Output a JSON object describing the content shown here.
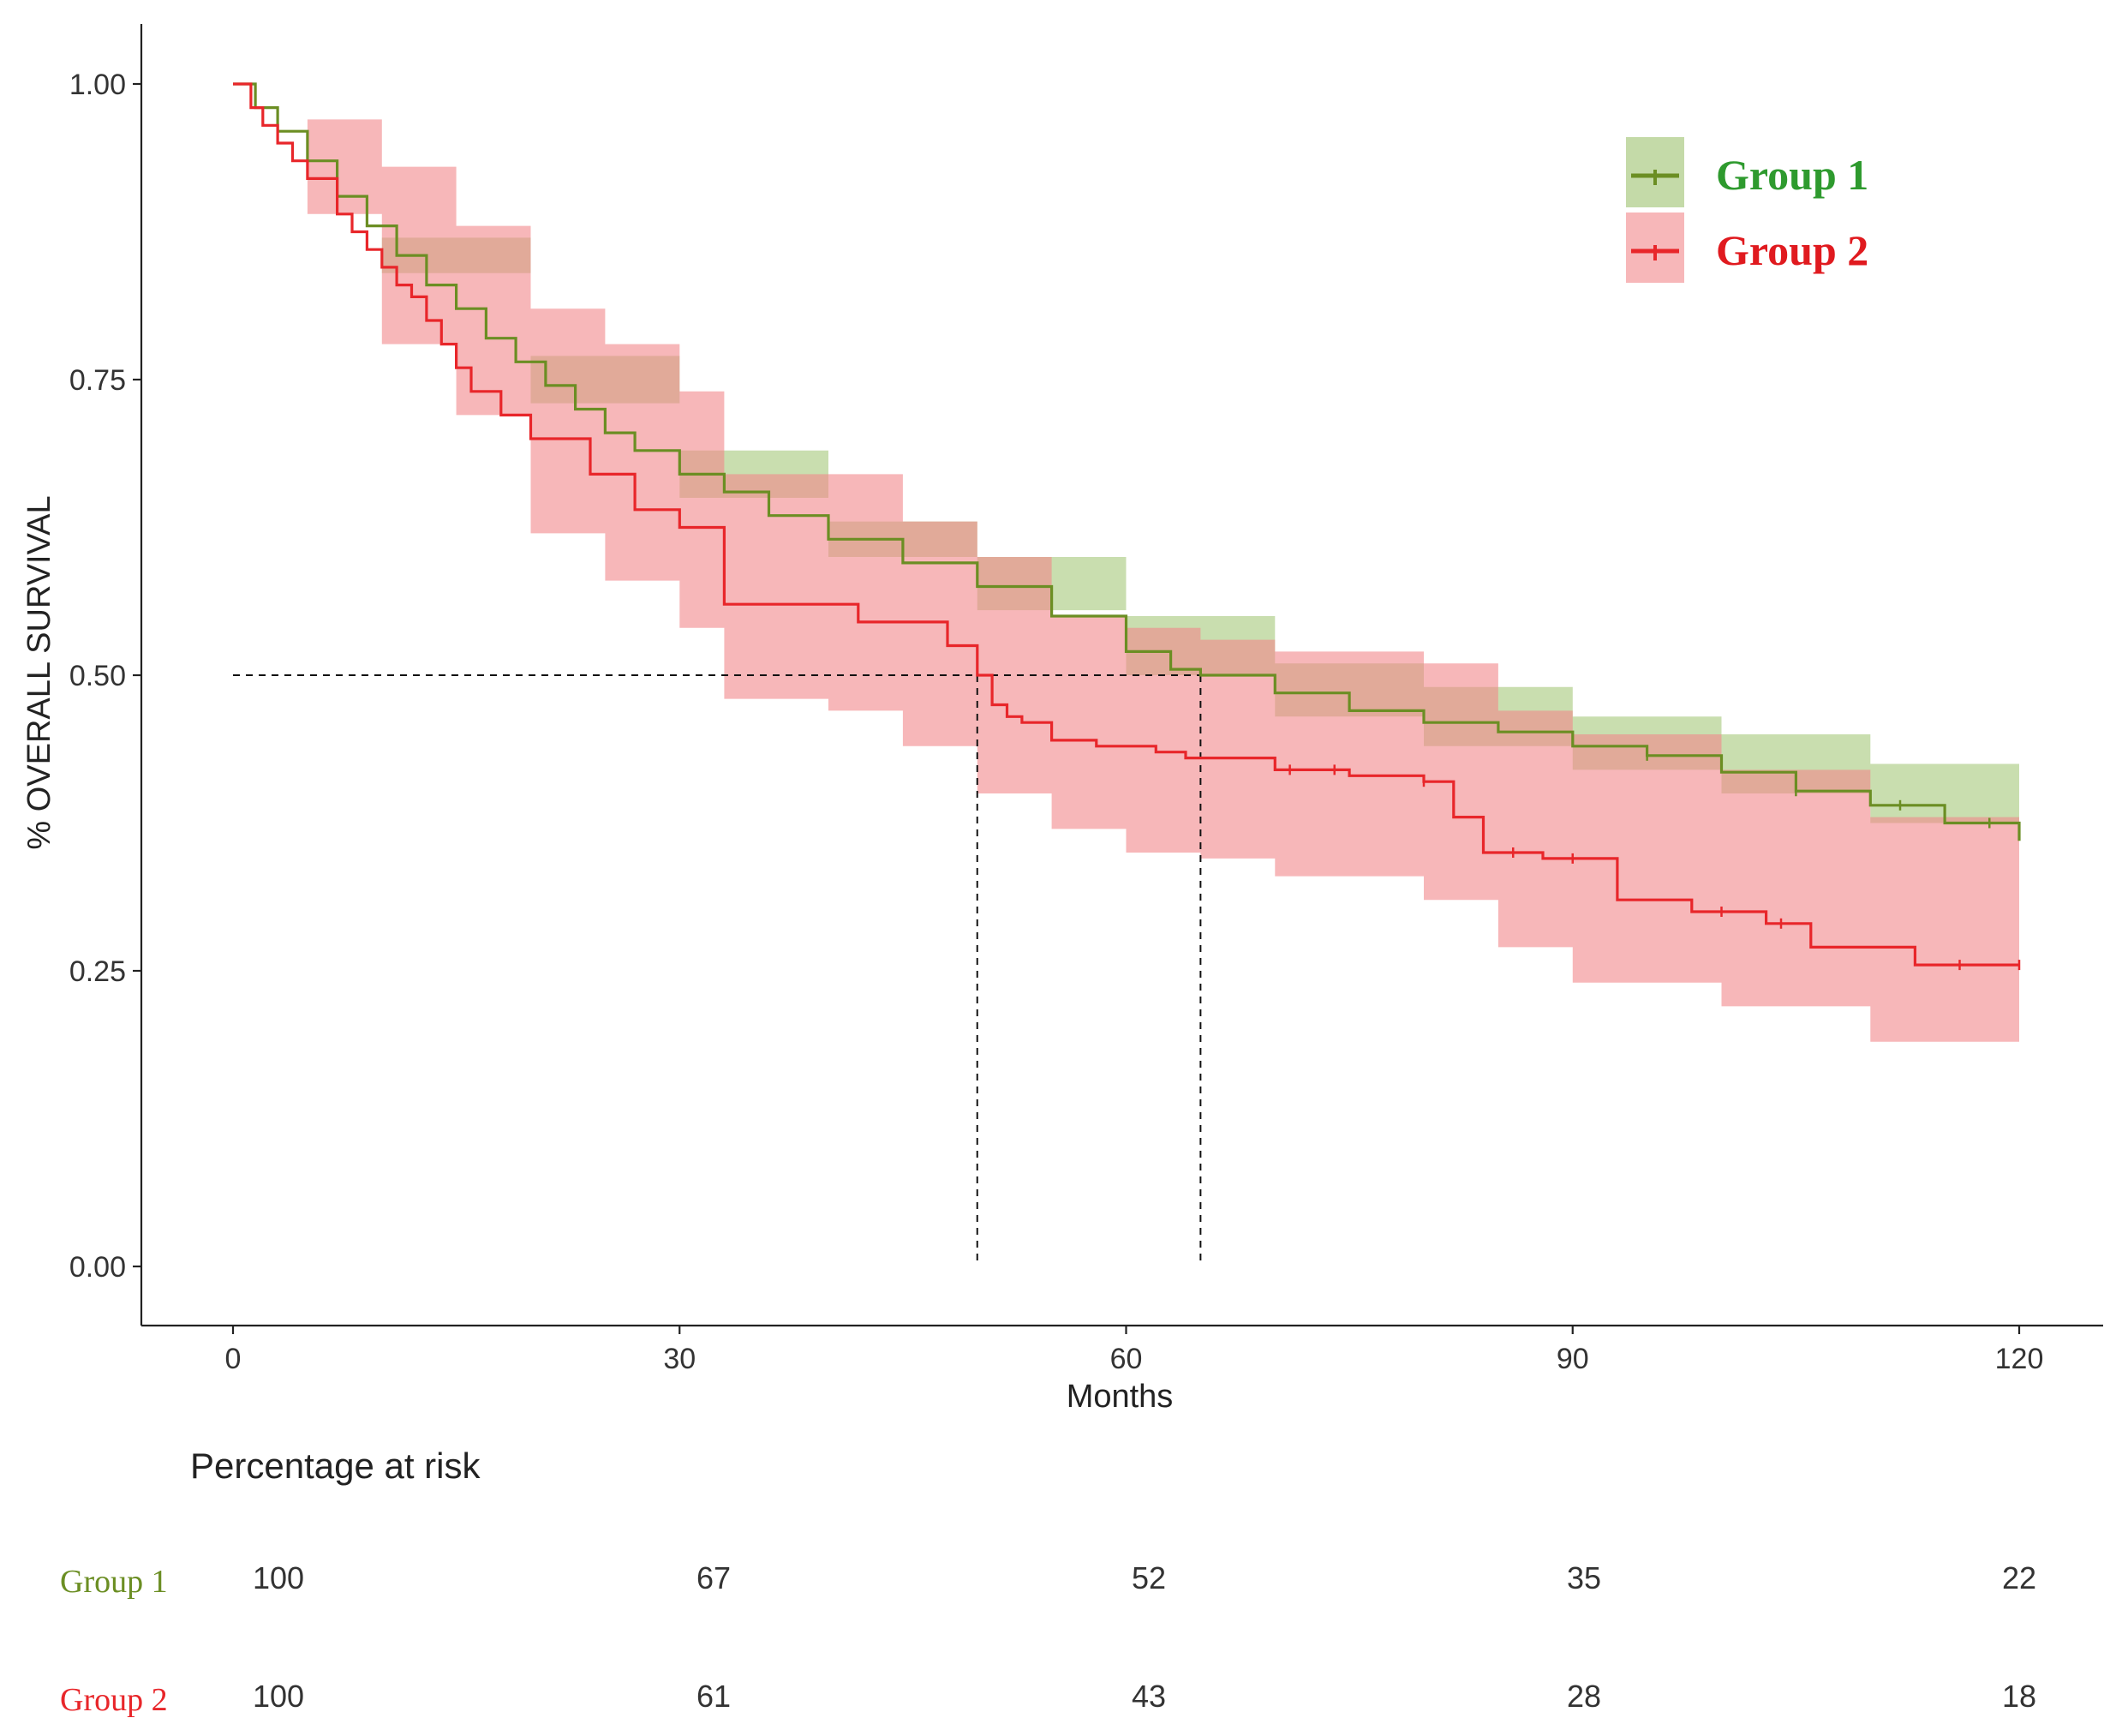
{
  "chart_data": {
    "type": "line",
    "subtype": "kaplan-meier",
    "xlabel": "Months",
    "ylabel": "% OVERALL SURVIVAL",
    "xlim": [
      0,
      120
    ],
    "ylim": [
      0,
      1
    ],
    "xticks": [
      0,
      30,
      60,
      90,
      120
    ],
    "yticks": [
      "0.00",
      "0.25",
      "0.50",
      "0.75",
      "1.00"
    ],
    "grid": false,
    "legend_position": "top-right",
    "reference_lines": {
      "horizontal_y": 0.5,
      "horizontal_from_x": 0,
      "median_survival_x": [
        50,
        65
      ]
    },
    "series": [
      {
        "name": "Group 1",
        "line_color": "#6b8e23",
        "band_color": "#9dc26e",
        "label_color": "#2e9a2e",
        "curve": [
          [
            0,
            1.0
          ],
          [
            1,
            1.0
          ],
          [
            1.5,
            0.98
          ],
          [
            3,
            0.96
          ],
          [
            5,
            0.935
          ],
          [
            7,
            0.905
          ],
          [
            9,
            0.88
          ],
          [
            11,
            0.855
          ],
          [
            13,
            0.83
          ],
          [
            15,
            0.81
          ],
          [
            17,
            0.785
          ],
          [
            19,
            0.765
          ],
          [
            21,
            0.745
          ],
          [
            23,
            0.725
          ],
          [
            25,
            0.705
          ],
          [
            27,
            0.69
          ],
          [
            30,
            0.67
          ],
          [
            33,
            0.655
          ],
          [
            36,
            0.635
          ],
          [
            40,
            0.615
          ],
          [
            45,
            0.595
          ],
          [
            50,
            0.575
          ],
          [
            55,
            0.55
          ],
          [
            60,
            0.52
          ],
          [
            63,
            0.505
          ],
          [
            65,
            0.5
          ],
          [
            70,
            0.485
          ],
          [
            75,
            0.47
          ],
          [
            80,
            0.46
          ],
          [
            85,
            0.452
          ],
          [
            90,
            0.44
          ],
          [
            95,
            0.432
          ],
          [
            100,
            0.418
          ],
          [
            105,
            0.402
          ],
          [
            110,
            0.39
          ],
          [
            115,
            0.375
          ],
          [
            120,
            0.36
          ]
        ],
        "ci_upper": [
          [
            0,
            1.0
          ],
          [
            10,
            0.87
          ],
          [
            20,
            0.77
          ],
          [
            30,
            0.69
          ],
          [
            40,
            0.63
          ],
          [
            50,
            0.6
          ],
          [
            60,
            0.55
          ],
          [
            70,
            0.51
          ],
          [
            80,
            0.49
          ],
          [
            90,
            0.465
          ],
          [
            100,
            0.45
          ],
          [
            110,
            0.425
          ],
          [
            120,
            0.39
          ]
        ],
        "ci_lower": [
          [
            0,
            1.0
          ],
          [
            10,
            0.84
          ],
          [
            20,
            0.73
          ],
          [
            30,
            0.65
          ],
          [
            40,
            0.6
          ],
          [
            50,
            0.555
          ],
          [
            60,
            0.5
          ],
          [
            70,
            0.465
          ],
          [
            80,
            0.44
          ],
          [
            90,
            0.42
          ],
          [
            100,
            0.4
          ],
          [
            110,
            0.375
          ],
          [
            120,
            0.345
          ]
        ],
        "censor_x": [
          95,
          105,
          112,
          118
        ],
        "risk_values": [
          "100",
          "67",
          "52",
          "35",
          "22"
        ]
      },
      {
        "name": "Group 2",
        "line_color": "#e8262a",
        "band_color": "#f2878b",
        "label_color": "#e01a1f",
        "curve": [
          [
            0,
            1.0
          ],
          [
            1,
            1.0
          ],
          [
            1.2,
            0.98
          ],
          [
            2,
            0.965
          ],
          [
            3,
            0.95
          ],
          [
            4,
            0.935
          ],
          [
            5,
            0.92
          ],
          [
            7,
            0.89
          ],
          [
            8,
            0.875
          ],
          [
            9,
            0.86
          ],
          [
            10,
            0.845
          ],
          [
            11,
            0.83
          ],
          [
            12,
            0.82
          ],
          [
            13,
            0.8
          ],
          [
            14,
            0.78
          ],
          [
            15,
            0.76
          ],
          [
            16,
            0.74
          ],
          [
            18,
            0.72
          ],
          [
            20,
            0.7
          ],
          [
            24,
            0.67
          ],
          [
            27,
            0.64
          ],
          [
            30,
            0.625
          ],
          [
            33,
            0.56
          ],
          [
            37,
            0.56
          ],
          [
            42,
            0.545
          ],
          [
            48,
            0.525
          ],
          [
            50,
            0.5
          ],
          [
            51,
            0.475
          ],
          [
            52,
            0.465
          ],
          [
            53,
            0.46
          ],
          [
            55,
            0.445
          ],
          [
            58,
            0.44
          ],
          [
            62,
            0.435
          ],
          [
            64,
            0.43
          ],
          [
            70,
            0.42
          ],
          [
            75,
            0.415
          ],
          [
            80,
            0.41
          ],
          [
            82,
            0.38
          ],
          [
            84,
            0.35
          ],
          [
            88,
            0.345
          ],
          [
            93,
            0.31
          ],
          [
            98,
            0.3
          ],
          [
            103,
            0.29
          ],
          [
            106,
            0.27
          ],
          [
            113,
            0.255
          ],
          [
            120,
            0.255
          ]
        ],
        "ci_upper": [
          [
            0,
            1.0
          ],
          [
            5,
            0.97
          ],
          [
            10,
            0.93
          ],
          [
            15,
            0.88
          ],
          [
            20,
            0.81
          ],
          [
            25,
            0.78
          ],
          [
            30,
            0.74
          ],
          [
            33,
            0.67
          ],
          [
            40,
            0.67
          ],
          [
            45,
            0.63
          ],
          [
            50,
            0.6
          ],
          [
            55,
            0.55
          ],
          [
            60,
            0.54
          ],
          [
            65,
            0.53
          ],
          [
            70,
            0.52
          ],
          [
            80,
            0.51
          ],
          [
            85,
            0.47
          ],
          [
            90,
            0.45
          ],
          [
            100,
            0.42
          ],
          [
            110,
            0.38
          ],
          [
            120,
            0.36
          ]
        ],
        "ci_lower": [
          [
            0,
            1.0
          ],
          [
            5,
            0.89
          ],
          [
            10,
            0.78
          ],
          [
            15,
            0.72
          ],
          [
            20,
            0.62
          ],
          [
            25,
            0.58
          ],
          [
            30,
            0.54
          ],
          [
            33,
            0.48
          ],
          [
            40,
            0.47
          ],
          [
            45,
            0.44
          ],
          [
            50,
            0.4
          ],
          [
            55,
            0.37
          ],
          [
            60,
            0.35
          ],
          [
            65,
            0.345
          ],
          [
            70,
            0.33
          ],
          [
            80,
            0.31
          ],
          [
            85,
            0.27
          ],
          [
            90,
            0.24
          ],
          [
            100,
            0.22
          ],
          [
            110,
            0.19
          ],
          [
            120,
            0.18
          ]
        ],
        "censor_x": [
          71,
          74,
          80,
          86,
          90,
          100,
          104,
          116,
          120
        ],
        "risk_values": [
          "100",
          "61",
          "43",
          "28",
          "18"
        ]
      }
    ]
  },
  "risk_table": {
    "title": "Percentage at risk",
    "times": [
      0,
      30,
      60,
      90,
      120
    ]
  }
}
